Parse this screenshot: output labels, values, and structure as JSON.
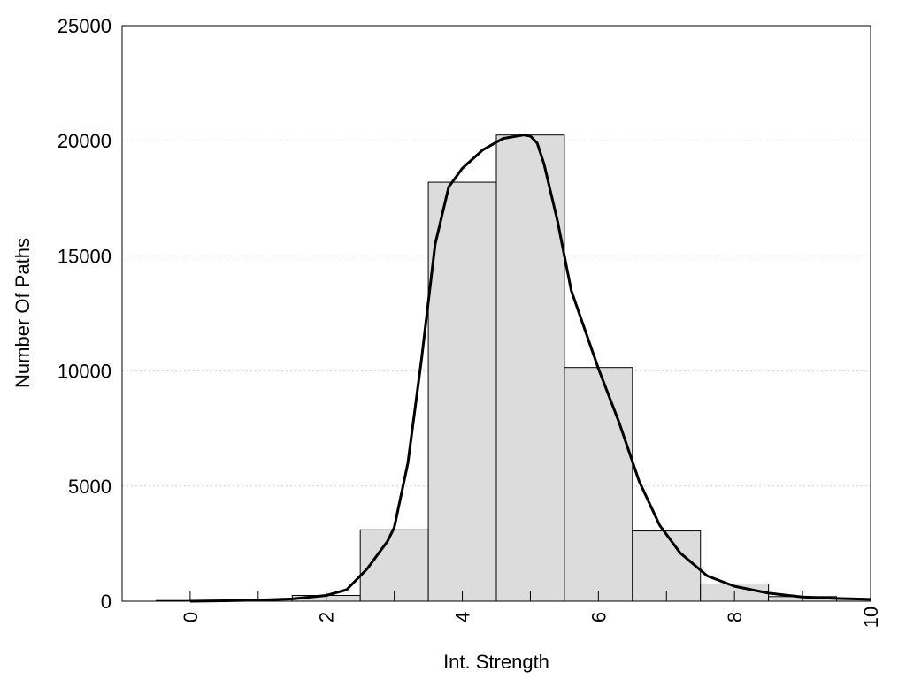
{
  "chart_data": {
    "type": "bar",
    "title": "",
    "xlabel": "Int. Strength",
    "ylabel": "Number Of Paths",
    "xlim": [
      -1,
      10
    ],
    "ylim": [
      0,
      25000
    ],
    "grid": "horizontal-dotted",
    "x_ticks": [
      0,
      2,
      4,
      6,
      8,
      10
    ],
    "x_tick_labels": [
      "0",
      "2",
      "4",
      "6",
      "8",
      "10"
    ],
    "y_ticks": [
      0,
      5000,
      10000,
      15000,
      20000,
      25000
    ],
    "y_tick_labels": [
      "0",
      "5000",
      "10000",
      "15000",
      "20000",
      "25000"
    ],
    "series": [
      {
        "kind": "histogram",
        "categories": [
          0,
          1,
          2,
          3,
          4,
          5,
          6,
          7,
          8,
          9,
          10
        ],
        "values": [
          30,
          60,
          250,
          3100,
          18200,
          20250,
          10150,
          3050,
          750,
          200,
          100
        ]
      },
      {
        "kind": "density-curve",
        "x": [
          0,
          0.5,
          1,
          1.5,
          2,
          2.3,
          2.6,
          2.9,
          3.0,
          3.2,
          3.4,
          3.5,
          3.6,
          3.8,
          3.9,
          4.0,
          4.3,
          4.6,
          4.9,
          5.0,
          5.1,
          5.2,
          5.4,
          5.6,
          5.8,
          6.0,
          6.3,
          6.6,
          6.9,
          7.2,
          7.6,
          8.0,
          8.5,
          9.0,
          9.5,
          10.0
        ],
        "y": [
          0,
          20,
          50,
          100,
          250,
          500,
          1400,
          2600,
          3200,
          6000,
          10500,
          13000,
          15500,
          18000,
          18400,
          18800,
          19600,
          20100,
          20250,
          20200,
          19900,
          19000,
          16500,
          13500,
          11800,
          10100,
          7800,
          5200,
          3300,
          2100,
          1100,
          650,
          350,
          180,
          120,
          80
        ]
      }
    ]
  }
}
